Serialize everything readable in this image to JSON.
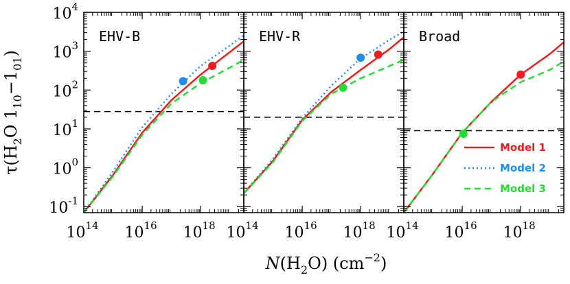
{
  "chart_data": {
    "type": "line",
    "x_log": true,
    "y_log": true,
    "xlim": [
      100000000000000.0,
      3e+19
    ],
    "ylim": [
      0.07,
      10000
    ],
    "xlabel": {
      "main": "N(H",
      "sub": "2",
      "tail": "O)  (cm",
      "sup": "−2",
      "close": ")"
    },
    "ylabel": {
      "pre": "τ(H",
      "sub1": "2",
      "mid": "O  1",
      "sub2": "10",
      "dash": "−1",
      "sub3": "01",
      "close": ")"
    },
    "x_ticks": [
      {
        "base": "10",
        "exp": "14",
        "value": 100000000000000.0
      },
      {
        "base": "10",
        "exp": "16",
        "value": 1e+16
      },
      {
        "base": "10",
        "exp": "18",
        "value": 1e+18
      }
    ],
    "y_ticks": [
      {
        "base": "10",
        "exp": "-1",
        "value": 0.1
      },
      {
        "base": "10",
        "exp": "0",
        "value": 1
      },
      {
        "base": "10",
        "exp": "1",
        "value": 10
      },
      {
        "base": "10",
        "exp": "2",
        "value": 100
      },
      {
        "base": "10",
        "exp": "3",
        "value": 1000
      },
      {
        "base": "10",
        "exp": "4",
        "value": 10000
      }
    ],
    "colors": {
      "model1": "#ee1c1c",
      "model2": "#1f8fef",
      "model3": "#22dd33"
    },
    "legend": {
      "position": "bottom-right of third panel",
      "entries": [
        {
          "label": "Model 1",
          "series": "model1",
          "dash": "solid"
        },
        {
          "label": "Model 2",
          "series": "model2",
          "dash": "dotted"
        },
        {
          "label": "Model 3",
          "series": "model3",
          "dash": "dashed"
        }
      ]
    },
    "panels": [
      {
        "label": "EHV-B",
        "threshold": 28,
        "series": [
          {
            "key": "model2",
            "dash": "dotted",
            "points": [
              [
                100000000000000.0,
                0.07
              ],
              [
                1000000000000000.0,
                0.8
              ],
              [
                1e+16,
                11
              ],
              [
                1e+17,
                80
              ],
              [
                1e+18,
                420
              ],
              [
                1e+19,
                1400
              ],
              [
                3e+19,
                2600
              ]
            ]
          },
          {
            "key": "model1",
            "dash": "solid",
            "points": [
              [
                100000000000000.0,
                0.07
              ],
              [
                1000000000000000.0,
                0.65
              ],
              [
                1e+16,
                8
              ],
              [
                1e+17,
                55
              ],
              [
                1e+18,
                250
              ],
              [
                1e+19,
                950
              ],
              [
                3e+19,
                1800
              ]
            ]
          },
          {
            "key": "model3",
            "dash": "dashed",
            "points": [
              [
                100000000000000.0,
                0.07
              ],
              [
                1000000000000000.0,
                0.6
              ],
              [
                1e+16,
                7
              ],
              [
                1e+17,
                45
              ],
              [
                1e+18,
                150
              ],
              [
                1e+19,
                380
              ],
              [
                3e+19,
                600
              ]
            ]
          }
        ],
        "markers": [
          {
            "key": "model2",
            "x": 2.5e+17,
            "y": 170
          },
          {
            "key": "model1",
            "x": 2.5e+18,
            "y": 420
          },
          {
            "key": "model3",
            "x": 1.2e+18,
            "y": 180
          }
        ]
      },
      {
        "label": "EHV-R",
        "threshold": 20,
        "series": [
          {
            "key": "model2",
            "dash": "dotted",
            "points": [
              [
                100000000000000.0,
                0.22
              ],
              [
                1000000000000000.0,
                1.7
              ],
              [
                1e+16,
                19
              ],
              [
                1e+17,
                130
              ],
              [
                1e+18,
                650
              ],
              [
                1e+19,
                2000
              ],
              [
                3e+19,
                3200
              ]
            ]
          },
          {
            "key": "model1",
            "dash": "solid",
            "points": [
              [
                100000000000000.0,
                0.22
              ],
              [
                1000000000000000.0,
                1.5
              ],
              [
                1e+16,
                17
              ],
              [
                1e+17,
                90
              ],
              [
                1e+18,
                330
              ],
              [
                1e+19,
                1150
              ],
              [
                3e+19,
                2300
              ]
            ]
          },
          {
            "key": "model3",
            "dash": "dashed",
            "points": [
              [
                100000000000000.0,
                0.22
              ],
              [
                1000000000000000.0,
                1.4
              ],
              [
                1e+16,
                16
              ],
              [
                1e+17,
                80
              ],
              [
                1e+18,
                200
              ],
              [
                1e+19,
                420
              ],
              [
                3e+19,
                600
              ]
            ]
          }
        ],
        "markers": [
          {
            "key": "model2",
            "x": 1e+18,
            "y": 680
          },
          {
            "key": "model1",
            "x": 4e+18,
            "y": 820
          },
          {
            "key": "model3",
            "x": 2.5e+17,
            "y": 115
          }
        ]
      },
      {
        "label": "Broad",
        "threshold": 9,
        "series": [
          {
            "key": "model1",
            "dash": "solid",
            "points": [
              [
                100000000000000.0,
                0.07
              ],
              [
                1000000000000000.0,
                0.7
              ],
              [
                1e+16,
                8
              ],
              [
                1e+17,
                50
              ],
              [
                1e+18,
                250
              ],
              [
                1e+19,
                850
              ],
              [
                3e+19,
                1700
              ]
            ]
          },
          {
            "key": "model3",
            "dash": "dashed",
            "points": [
              [
                100000000000000.0,
                0.07
              ],
              [
                1000000000000000.0,
                0.7
              ],
              [
                1e+16,
                8
              ],
              [
                1e+17,
                50
              ],
              [
                1e+18,
                160
              ],
              [
                1e+19,
                330
              ],
              [
                3e+19,
                550
              ]
            ]
          }
        ],
        "markers": [
          {
            "key": "model3",
            "x": 1.1e+16,
            "y": 7.5
          },
          {
            "key": "model1",
            "x": 1e+18,
            "y": 250
          }
        ]
      }
    ]
  }
}
